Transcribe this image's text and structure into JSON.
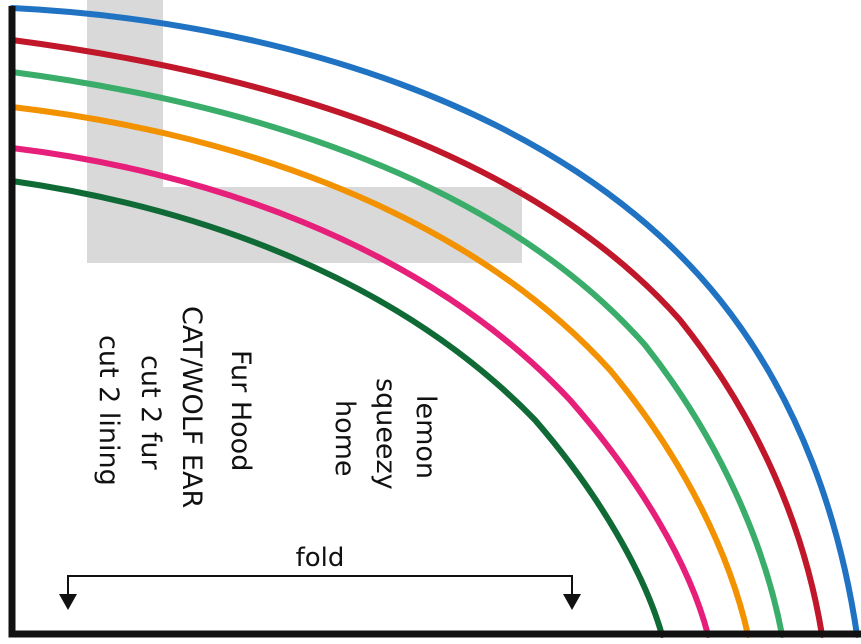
{
  "pattern": {
    "title_lines": [
      "Fur Hood",
      "CAT/WOLF EAR",
      "cut 2 fur",
      "cut 2 lining"
    ],
    "brand_lines": [
      "lemon",
      "squeezy",
      "home"
    ],
    "fold_label": "fold",
    "size_lines": [
      {
        "color": "#1f73c2"
      },
      {
        "color": "#c0182a"
      },
      {
        "color": "#3aad6a"
      },
      {
        "color": "#f39200"
      },
      {
        "color": "#e6207a"
      },
      {
        "color": "#0f6a36"
      }
    ],
    "outline_color": "#111111",
    "overlay_color": "#d9d9d9"
  }
}
